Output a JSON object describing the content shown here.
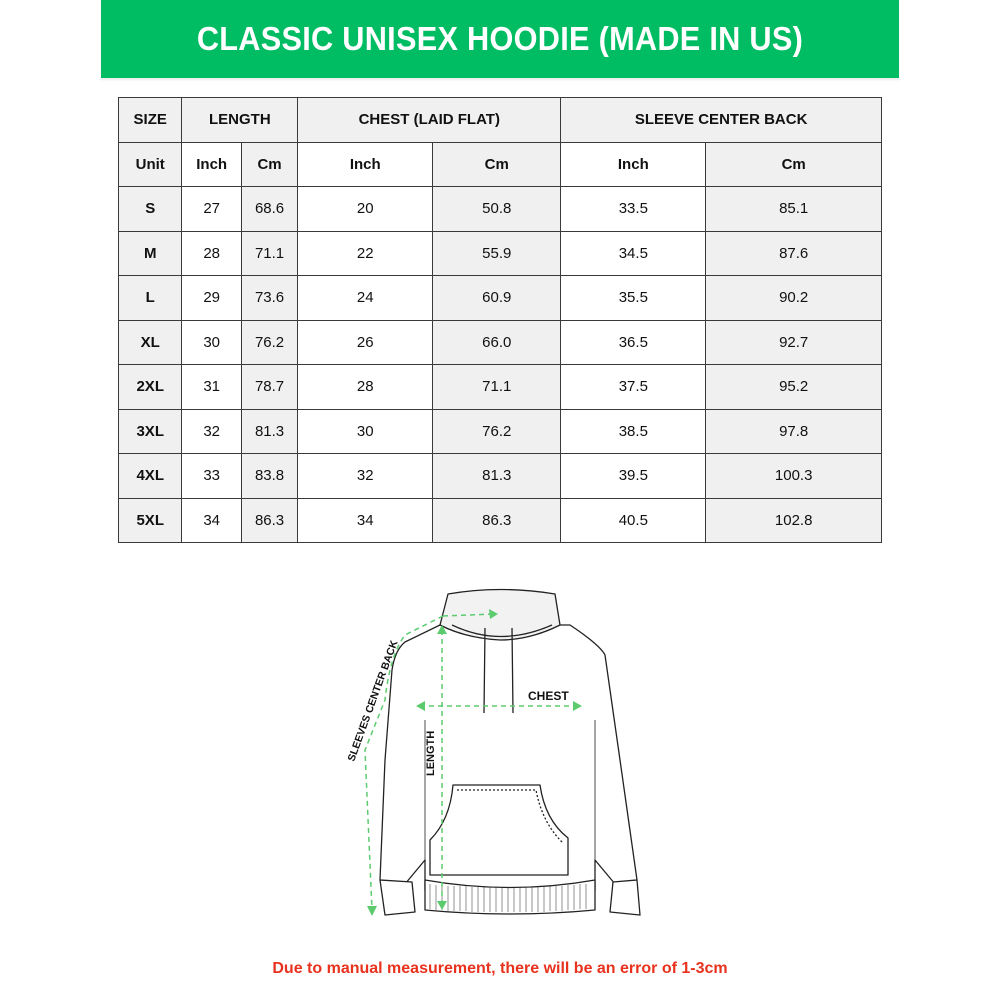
{
  "colors": {
    "accent": "#00bd63",
    "note": "#e8321e",
    "arrow": "#5ccb6e"
  },
  "title": "CLASSIC UNISEX HOODIE (MADE IN US)",
  "table": {
    "headers": [
      "SIZE",
      "LENGTH",
      "CHEST (LAID FLAT)",
      "SLEEVE CENTER BACK"
    ],
    "units": [
      "Unit",
      "Inch",
      "Cm",
      "Inch",
      "Cm",
      "Inch",
      "Cm"
    ],
    "rows": [
      [
        "S",
        "27",
        "68.6",
        "20",
        "50.8",
        "33.5",
        "85.1"
      ],
      [
        "M",
        "28",
        "71.1",
        "22",
        "55.9",
        "34.5",
        "87.6"
      ],
      [
        "L",
        "29",
        "73.6",
        "24",
        "60.9",
        "35.5",
        "90.2"
      ],
      [
        "XL",
        "30",
        "76.2",
        "26",
        "66.0",
        "36.5",
        "92.7"
      ],
      [
        "2XL",
        "31",
        "78.7",
        "28",
        "71.1",
        "37.5",
        "95.2"
      ],
      [
        "3XL",
        "32",
        "81.3",
        "30",
        "76.2",
        "38.5",
        "97.8"
      ],
      [
        "4XL",
        "33",
        "83.8",
        "32",
        "81.3",
        "39.5",
        "100.3"
      ],
      [
        "5XL",
        "34",
        "86.3",
        "34",
        "86.3",
        "40.5",
        "102.8"
      ]
    ]
  },
  "diagram": {
    "chest_label": "CHEST",
    "length_label": "LENGTH",
    "sleeve_label": "SLEEVES CENTER BACK"
  },
  "note": "Due to manual measurement, there will be an error of 1-3cm"
}
